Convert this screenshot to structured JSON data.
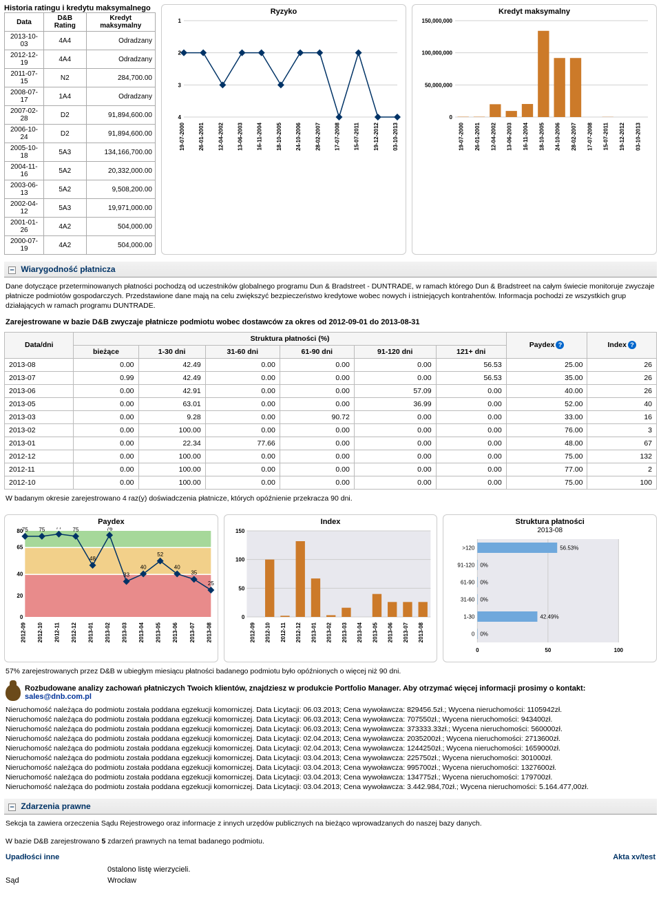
{
  "history": {
    "title": "Historia ratingu i kredytu maksymalnego",
    "col_data": "Data",
    "col_rating": "D&B Rating",
    "col_credit": "Kredyt maksymalny",
    "rows": [
      {
        "d": "2013-10-03",
        "r": "4A4",
        "c": "Odradzany"
      },
      {
        "d": "2012-12-19",
        "r": "4A4",
        "c": "Odradzany"
      },
      {
        "d": "2011-07-15",
        "r": "N2",
        "c": "284,700.00"
      },
      {
        "d": "2008-07-17",
        "r": "1A4",
        "c": "Odradzany"
      },
      {
        "d": "2007-02-28",
        "r": "D2",
        "c": "91,894,600.00"
      },
      {
        "d": "2006-10-24",
        "r": "D2",
        "c": "91,894,600.00"
      },
      {
        "d": "2005-10-18",
        "r": "5A3",
        "c": "134,166,700.00"
      },
      {
        "d": "2004-11-16",
        "r": "5A2",
        "c": "20,332,000.00"
      },
      {
        "d": "2003-06-13",
        "r": "5A2",
        "c": "9,508,200.00"
      },
      {
        "d": "2002-04-12",
        "r": "5A3",
        "c": "19,971,000.00"
      },
      {
        "d": "2001-01-26",
        "r": "4A2",
        "c": "504,000.00"
      },
      {
        "d": "2000-07-19",
        "r": "4A2",
        "c": "504,000.00"
      }
    ]
  },
  "risk_chart": {
    "title": "Ryzyko",
    "type": "line",
    "x_labels": [
      "19-07-2000",
      "26-01-2001",
      "12-04-2002",
      "13-06-2003",
      "16-11-2004",
      "18-10-2005",
      "24-10-2006",
      "28-02-2007",
      "17-07-2008",
      "15-07-2011",
      "19-12-2012",
      "03-10-2013"
    ],
    "y_values": [
      2,
      2,
      3,
      2,
      2,
      3,
      2,
      2,
      4,
      2,
      4,
      4
    ],
    "ylim": [
      1,
      4
    ],
    "yticks": [
      1,
      2,
      3,
      4
    ],
    "line_color": "#003366",
    "marker": "diamond",
    "marker_size": 5,
    "grid_color": "#d0d0d0",
    "background_color": "#ffffff",
    "label_fontsize": 8
  },
  "credit_chart": {
    "title": "Kredyt maksymalny",
    "type": "bar",
    "x_labels": [
      "19-07-2000",
      "26-01-2001",
      "12-04-2002",
      "13-06-2003",
      "16-11-2004",
      "18-10-2005",
      "24-10-2006",
      "28-02-2007",
      "17-07-2008",
      "15-07-2011",
      "19-12-2012",
      "03-10-2013"
    ],
    "values": [
      504000,
      504000,
      19971000,
      9508200,
      20332000,
      134166700,
      91894600,
      91894600,
      0,
      284700,
      0,
      0
    ],
    "ylim": [
      0,
      150000000
    ],
    "yticks": [
      0,
      50000000,
      100000000,
      150000000
    ],
    "bar_color": "#cc7a29",
    "grid_color": "#d0d0d0",
    "background_color": "#ffffff",
    "label_fontsize": 8
  },
  "section_cred": {
    "title": "Wiarygodność płatnicza"
  },
  "cred_text1": "Dane dotyczące przeterminowanych płatności pochodzą od uczestników globalnego programu Dun & Bradstreet - DUNTRADE, w ramach którego Dun & Bradstreet na całym świecie monitoruje zwyczaje płatnicze podmiotów gospodarczych. Przedstawione dane mają na celu zwiększyć bezpieczeństwo kredytowe wobec nowych i istniejących kontrahentów. Informacja pochodzi ze wszystkich grup działających w ramach programu DUNTRADE.",
  "payments_title": "Zarejestrowane w bazie D&B zwyczaje płatnicze podmiotu wobec dostawców za okres od 2012-09-01 do 2013-08-31",
  "pay_headers": {
    "datadni": "Data/dni",
    "struct": "Struktura płatności (%)",
    "biezace": "bieżące",
    "d130": "1-30 dni",
    "d3160": "31-60 dni",
    "d6190": "61-90 dni",
    "d91120": "91-120 dni",
    "d121": "121+ dni",
    "paydex": "Paydex",
    "index": "Index"
  },
  "pay_rows": [
    {
      "m": "2013-08",
      "b": "0.00",
      "c1": "42.49",
      "c2": "0.00",
      "c3": "0.00",
      "c4": "0.00",
      "c5": "56.53",
      "p": "25.00",
      "i": "26"
    },
    {
      "m": "2013-07",
      "b": "0.99",
      "c1": "42.49",
      "c2": "0.00",
      "c3": "0.00",
      "c4": "0.00",
      "c5": "56.53",
      "p": "35.00",
      "i": "26"
    },
    {
      "m": "2013-06",
      "b": "0.00",
      "c1": "42.91",
      "c2": "0.00",
      "c3": "0.00",
      "c4": "57.09",
      "c5": "0.00",
      "p": "40.00",
      "i": "26"
    },
    {
      "m": "2013-05",
      "b": "0.00",
      "c1": "63.01",
      "c2": "0.00",
      "c3": "0.00",
      "c4": "36.99",
      "c5": "0.00",
      "p": "52.00",
      "i": "40"
    },
    {
      "m": "2013-03",
      "b": "0.00",
      "c1": "9.28",
      "c2": "0.00",
      "c3": "90.72",
      "c4": "0.00",
      "c5": "0.00",
      "p": "33.00",
      "i": "16"
    },
    {
      "m": "2013-02",
      "b": "0.00",
      "c1": "100.00",
      "c2": "0.00",
      "c3": "0.00",
      "c4": "0.00",
      "c5": "0.00",
      "p": "76.00",
      "i": "3"
    },
    {
      "m": "2013-01",
      "b": "0.00",
      "c1": "22.34",
      "c2": "77.66",
      "c3": "0.00",
      "c4": "0.00",
      "c5": "0.00",
      "p": "48.00",
      "i": "67"
    },
    {
      "m": "2012-12",
      "b": "0.00",
      "c1": "100.00",
      "c2": "0.00",
      "c3": "0.00",
      "c4": "0.00",
      "c5": "0.00",
      "p": "75.00",
      "i": "132"
    },
    {
      "m": "2012-11",
      "b": "0.00",
      "c1": "100.00",
      "c2": "0.00",
      "c3": "0.00",
      "c4": "0.00",
      "c5": "0.00",
      "p": "77.00",
      "i": "2"
    },
    {
      "m": "2012-10",
      "b": "0.00",
      "c1": "100.00",
      "c2": "0.00",
      "c3": "0.00",
      "c4": "0.00",
      "c5": "0.00",
      "p": "75.00",
      "i": "100"
    }
  ],
  "pay_note": "W badanym okresie zarejestrowano 4 raz(y) doświadczenia płatnicze, których opóźnienie przekracza 90 dni.",
  "paydex_chart": {
    "title": "Paydex",
    "type": "line",
    "x_labels": [
      "2012-09",
      "2012-10",
      "2012-11",
      "2012-12",
      "2013-01",
      "2013-02",
      "2013-03",
      "2013-04",
      "2013-05",
      "2013-06",
      "2013-07",
      "2013-08"
    ],
    "values": [
      75,
      75,
      77,
      75,
      48,
      76,
      33,
      40,
      52,
      40,
      35,
      25
    ],
    "bands": [
      {
        "from": 0,
        "to": 39,
        "color": "#e88b8b"
      },
      {
        "from": 40,
        "to": 64,
        "color": "#f2d08a"
      },
      {
        "from": 65,
        "to": 80,
        "color": "#a6d89a"
      }
    ],
    "ylim": [
      0,
      80
    ],
    "yticks": [
      0,
      20,
      40,
      65,
      80
    ],
    "line_color": "#003366",
    "marker": "diamond",
    "marker_size": 5,
    "label_fontsize": 8
  },
  "index_chart": {
    "title": "Index",
    "type": "bar",
    "x_labels": [
      "2012-09",
      "2012-10",
      "2012-11",
      "2012-12",
      "2013-01",
      "2013-02",
      "2013-03",
      "2013-04",
      "2013-05",
      "2013-06",
      "2013-07",
      "2013-08"
    ],
    "values": [
      0,
      100,
      2,
      132,
      67,
      3,
      16,
      0,
      40,
      26,
      26,
      26
    ],
    "ylim": [
      0,
      150
    ],
    "yticks": [
      0,
      50,
      100,
      150
    ],
    "bar_color": "#cc7a29",
    "bg": "#e8e8ee",
    "label_fontsize": 8
  },
  "struct_chart": {
    "title": "Struktura płatności",
    "subtitle": "2013-08",
    "type": "hbar",
    "categories": [
      ">120",
      "91-120",
      "61-90",
      "31-60",
      "1-30",
      "0"
    ],
    "values": [
      56.53,
      0,
      0,
      0,
      42.49,
      0
    ],
    "value_labels": [
      "56.53%",
      "0%",
      "0%",
      "0%",
      "42.49%",
      "0%"
    ],
    "xlim": [
      0,
      100
    ],
    "xticks": [
      0,
      50,
      100
    ],
    "bar_color": "#6fa8dc",
    "bg": "#e8e8ee",
    "label_fontsize": 8
  },
  "late_note": "57% zarejestrowanych przez D&B w ubiegłym miesiącu płatności badanego podmiotu było opóźnionych o więcej niż 90 dni.",
  "promo_text": "Rozbudowane analizy zachowań płatniczych Twoich klientów, znajdziesz w produkcie Portfolio Manager. Aby otrzymać więcej informacji prosimy o kontakt:",
  "promo_email": "sales@dnb.com.pl",
  "exec_lines": [
    "Nieruchomość należąca do podmiotu została poddana egzekucji komorniczej. Data Licytacji: 06.03.2013; Cena wywoławcza: 829456.5zł.; Wycena nieruchomości: 1105942zł.",
    "Nieruchomość należąca do podmiotu została poddana egzekucji komorniczej. Data Licytacji: 06.03.2013; Cena wywoławcza: 707550zł.; Wycena nieruchomości: 943400zł.",
    "Nieruchomość należąca do podmiotu została poddana egzekucji komorniczej. Data Licytacji: 06.03.2013; Cena wywoławcza: 373333.33zł.; Wycena nieruchomości: 560000zł.",
    "Nieruchomość należąca do podmiotu została poddana egzekucji komorniczej. Data Licytacji: 02.04.2013; Cena wywoławcza: 2035200zł.; Wycena nieruchomości: 2713600zł.",
    "Nieruchomość należąca do podmiotu została poddana egzekucji komorniczej. Data Licytacji: 02.04.2013; Cena wywoławcza: 1244250zł.; Wycena nieruchomości: 1659000zł.",
    "Nieruchomość należąca do podmiotu została poddana egzekucji komorniczej. Data Licytacji: 03.04.2013; Cena wywoławcza: 225750zł.; Wycena nieruchomości: 301000zł.",
    "Nieruchomość należąca do podmiotu została poddana egzekucji komorniczej. Data Licytacji: 03.04.2013; Cena wywoławcza: 995700zł.; Wycena nieruchomości: 1327600zł.",
    "Nieruchomość należąca do podmiotu została poddana egzekucji komorniczej. Data Licytacji: 03.04.2013; Cena wywoławcza: 134775zł.; Wycena nieruchomości: 179700zł.",
    "Nieruchomość należąca do podmiotu została poddana egzekucji komorniczej. Data Licytacji: 03.04.2013; Cena wywoławcza: 3.442.984,70zł.; Wycena nieruchomości: 5.164.477,00zł."
  ],
  "section_legal": {
    "title": "Zdarzenia prawne"
  },
  "legal_text1": "Sekcja ta zawiera orzeczenia Sądu Rejestrowego oraz informacje z innych urzędów publicznych na bieżąco wprowadzanych do naszej bazy danych.",
  "legal_text2": "W bazie D&B zarejestrowano 5 zdarzeń prawnych na temat badanego podmiotu.",
  "legal_sub": "Upadłości inne",
  "legal_akta": "Akta xv/test",
  "legal_row1": "0stalono listę wierzycieli.",
  "legal_sad": "Sąd",
  "legal_sad_val": "Wrocław"
}
